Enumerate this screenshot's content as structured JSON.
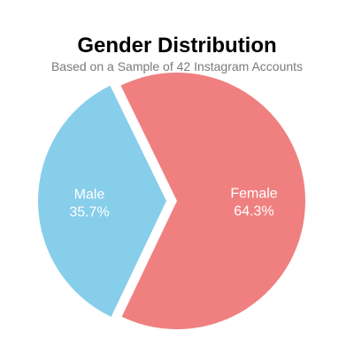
{
  "chart_data": {
    "type": "pie",
    "title": "Gender Distribution",
    "subtitle": "Based on a Sample of 42 Instagram Accounts",
    "categories": [
      "Female",
      "Male"
    ],
    "values": [
      64.3,
      35.7
    ],
    "value_labels": [
      "64.3%",
      "35.7%"
    ],
    "colors": [
      "#f08080",
      "#87ceeb"
    ],
    "exploded": [
      "Male"
    ],
    "legend": "none"
  }
}
